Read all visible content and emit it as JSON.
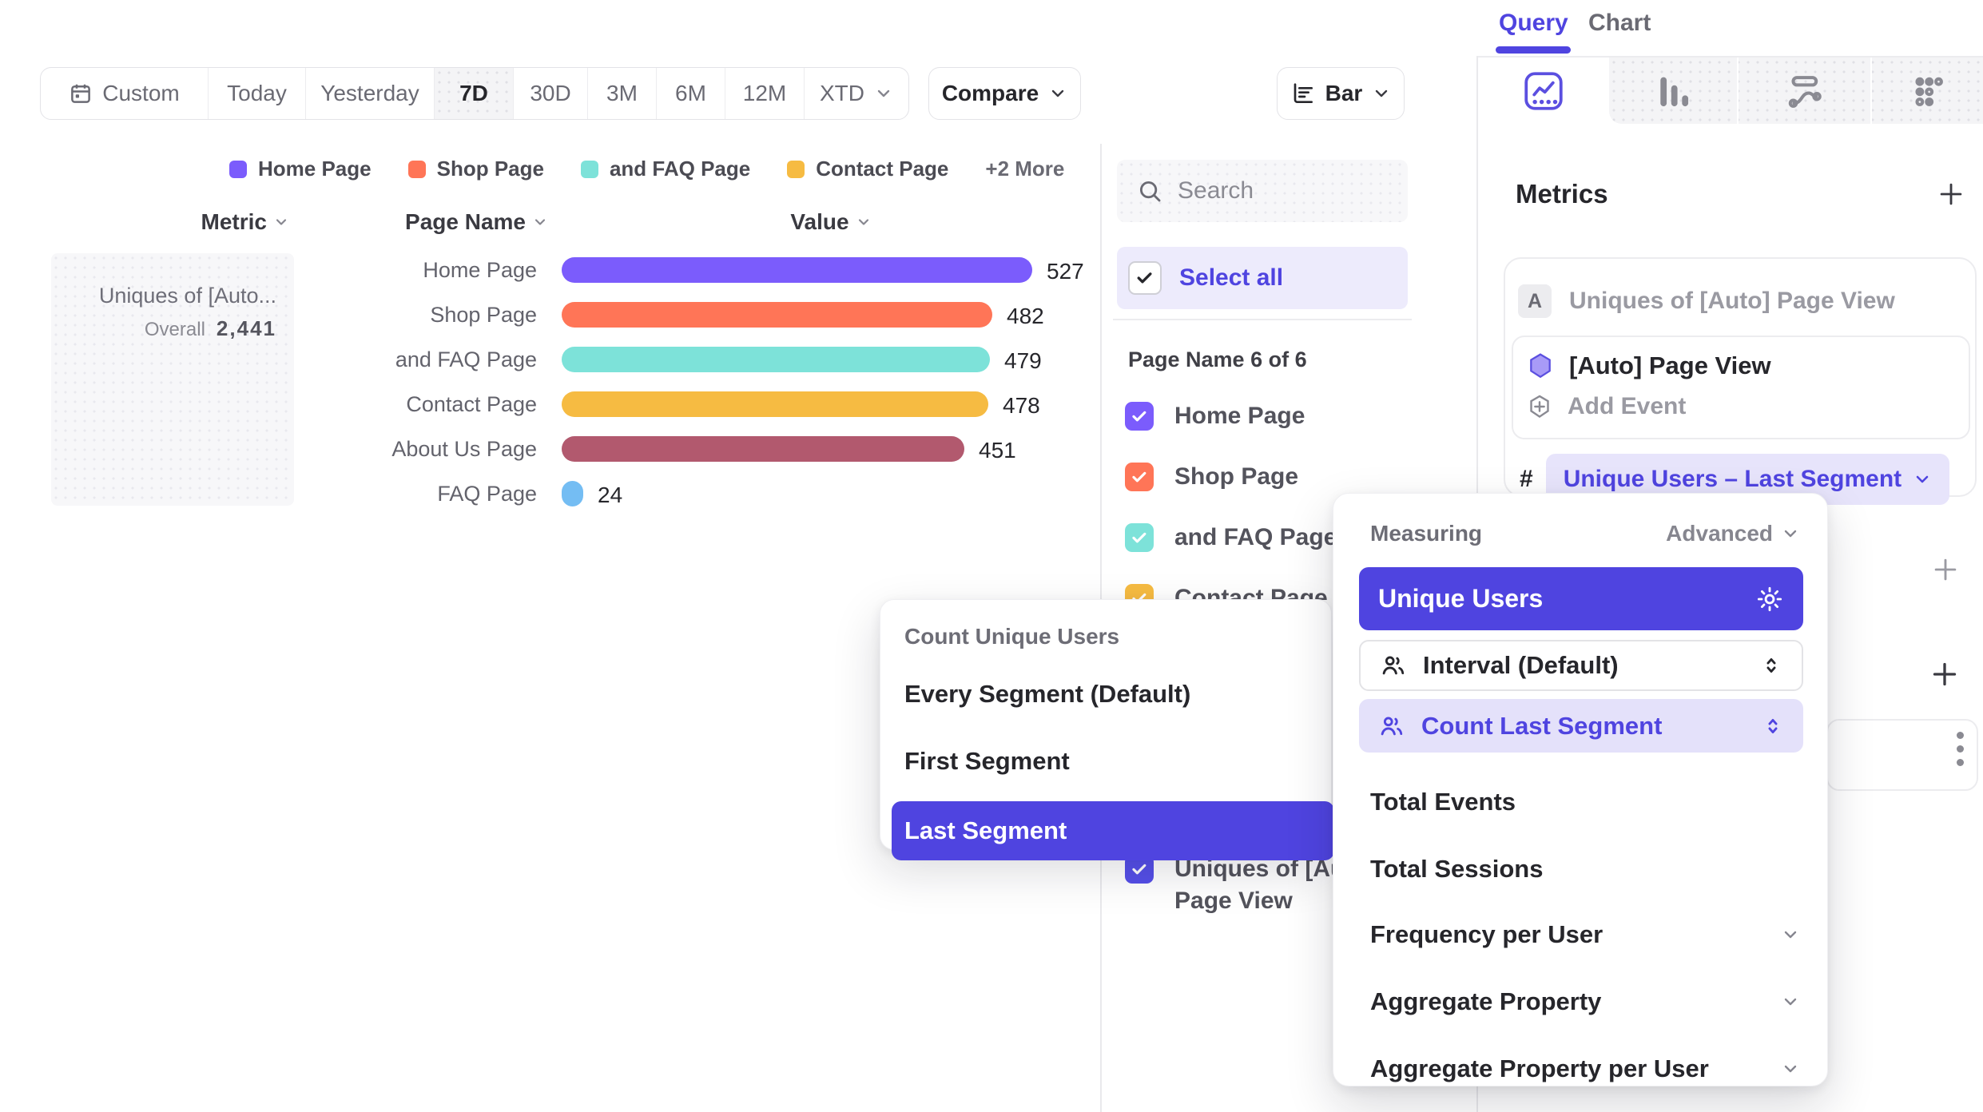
{
  "colors": {
    "accent": "#4F44E0",
    "accent_soft_pill": "#E7E4FB",
    "accent_soft_row": "#E4E1FA",
    "select_all_bg": "#EDEBFC",
    "bar_purple": "#7B5CFC",
    "coral": "#FF7557",
    "teal": "#7DE2D9",
    "amber": "#F6BB42",
    "maroon": "#B2596E",
    "blue": "#74BDF3"
  },
  "toolbar": {
    "date_ranges": [
      "Custom",
      "Today",
      "Yesterday",
      "7D",
      "30D",
      "3M",
      "6M",
      "12M",
      "XTD"
    ],
    "selected_range": "7D",
    "custom_icon": "calendar-icon",
    "compare_label": "Compare",
    "chart_type_label": "Bar",
    "chart_type_icon": "horizontal-bar-chart-icon"
  },
  "legend": {
    "items": [
      {
        "label": "Home Page",
        "color": "#7B5CFC"
      },
      {
        "label": "Shop Page",
        "color": "#FF7557"
      },
      {
        "label": "and FAQ Page",
        "color": "#7DE2D9"
      },
      {
        "label": "Contact Page",
        "color": "#F6BB42"
      }
    ],
    "more_label": "+2 More"
  },
  "table": {
    "headers": [
      "Metric",
      "Page Name",
      "Value"
    ]
  },
  "chart_data": {
    "type": "bar",
    "orientation": "horizontal",
    "metric_label_truncated": "Uniques of [Auto...",
    "metric_full": "Uniques of [Auto] Page View",
    "overall_label": "Overall",
    "overall_value": "2,441",
    "categories": [
      "Home Page",
      "Shop Page",
      "and FAQ Page",
      "Contact Page",
      "About Us Page",
      "FAQ Page"
    ],
    "values": [
      527,
      482,
      479,
      478,
      451,
      24
    ],
    "colors": [
      "#7B5CFC",
      "#FF7557",
      "#7DE2D9",
      "#F6BB42",
      "#B2596E",
      "#74BDF3"
    ],
    "xlim": [
      0,
      560
    ],
    "legend_visible": true,
    "grid": false
  },
  "filter_panel": {
    "search_placeholder": "Search",
    "search_icon": "search-icon",
    "select_all_label": "Select all",
    "group_label": "Page Name 6 of 6",
    "items": [
      {
        "label": "Home Page",
        "color": "#7B5CFC",
        "checked": true
      },
      {
        "label": "Shop Page",
        "color": "#FF7557",
        "checked": true
      },
      {
        "label": "and FAQ Page",
        "color": "#7DE2D9",
        "checked": true
      },
      {
        "label": "Contact Page",
        "color": "#F6BB42",
        "checked": true
      },
      {
        "label": "Uniques of [Auto] Page View",
        "color": "#554FE8",
        "checked": true
      }
    ]
  },
  "segment_popup": {
    "title": "Count Unique Users",
    "options": [
      "Every Segment (Default)",
      "First Segment",
      "Last Segment"
    ],
    "selected": "Last Segment"
  },
  "measuring_popup": {
    "title": "Measuring",
    "advanced_label": "Advanced",
    "primary_label": "Unique Users",
    "primary_icon": "gear-icon",
    "interval_label": "Interval (Default)",
    "count_label": "Count Last Segment",
    "row_icon": "people-icon",
    "stepper_icon": "up-down-stepper-icon",
    "options": [
      "Total Events",
      "Total Sessions"
    ],
    "expandable": [
      "Frequency per User",
      "Aggregate Property",
      "Aggregate Property per User"
    ]
  },
  "query_panel": {
    "tabs": [
      "Query",
      "Chart"
    ],
    "active_tab": "Query",
    "chart_type_icons": [
      "line-chart-icon",
      "bar-columns-icon",
      "flows-icon",
      "grid-dots-icon"
    ],
    "metrics_heading": "Metrics",
    "add_metric_icon": "plus-icon",
    "metric_row": {
      "badge": "A",
      "label": "Uniques of [Auto] Page View"
    },
    "event_label": "[Auto] Page View",
    "event_icon": "hexagon-icon",
    "add_event_label": "Add Event",
    "measure_hash": "#",
    "measure_label": "Unique Users – Last Segment",
    "add_breakdown_icon": "plus-icon",
    "add_filter_icon": "plus-icon",
    "more_menu_icon": "kebab-icon"
  }
}
